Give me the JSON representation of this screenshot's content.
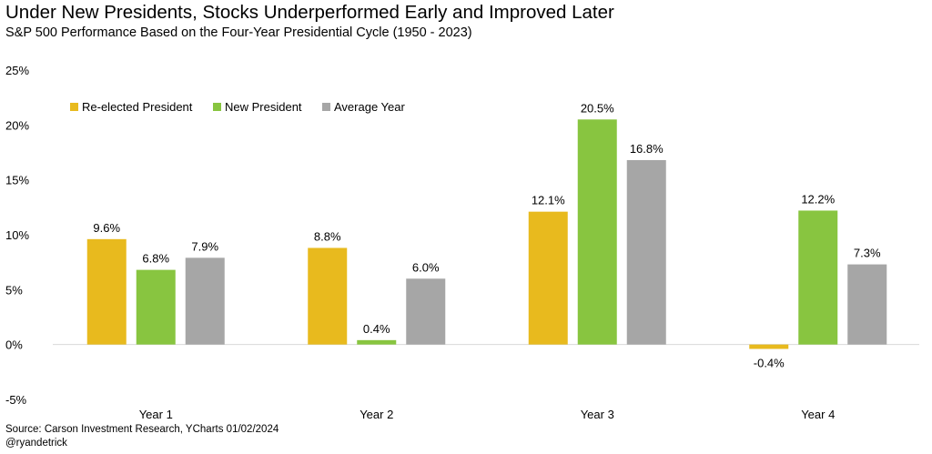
{
  "title": "Under New Presidents, Stocks Underperformed Early and Improved Later",
  "subtitle": "S&P 500 Performance Based on the Four-Year Presidential Cycle (1950 - 2023)",
  "source": "Source: Carson Investment Research, YCharts 01/02/2024",
  "handle": "@ryandetrick",
  "chart_data": {
    "type": "bar",
    "title": "Under New Presidents, Stocks Underperformed Early and Improved Later",
    "subtitle": "S&P 500 Performance Based on the Four-Year Presidential Cycle (1950 - 2023)",
    "categories": [
      "Year 1",
      "Year 2",
      "Year 3",
      "Year 4"
    ],
    "series": [
      {
        "name": "Re-elected President",
        "color": "#E8BA1E",
        "values": [
          9.6,
          8.8,
          12.1,
          -0.4
        ],
        "labels": [
          "9.6%",
          "8.8%",
          "12.1%",
          "-0.4%"
        ]
      },
      {
        "name": "New President",
        "color": "#88C540",
        "values": [
          6.8,
          0.4,
          20.5,
          12.2
        ],
        "labels": [
          "6.8%",
          "0.4%",
          "20.5%",
          "12.2%"
        ]
      },
      {
        "name": "Average Year",
        "color": "#A6A6A6",
        "values": [
          7.9,
          6.0,
          16.8,
          7.3
        ],
        "labels": [
          "7.9%",
          "6.0%",
          "16.8%",
          "7.3%"
        ]
      }
    ],
    "ylim": [
      -5,
      25
    ],
    "yticks": [
      25,
      20,
      15,
      10,
      5,
      0,
      -5
    ],
    "ytick_labels": [
      "25%",
      "20%",
      "15%",
      "10%",
      "5%",
      "0%",
      "-5%"
    ],
    "grid": false,
    "legend": "top-left",
    "xlabel": "",
    "ylabel": ""
  }
}
